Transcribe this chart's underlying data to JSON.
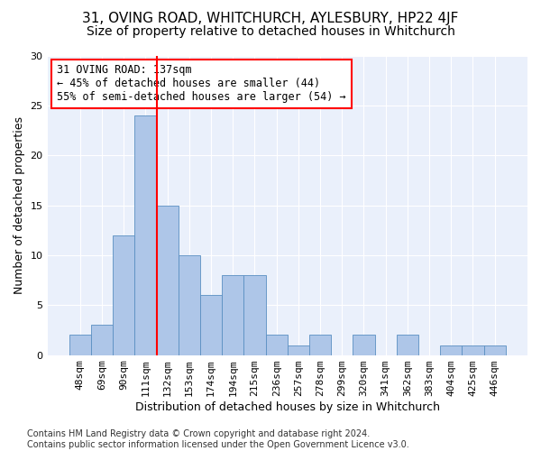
{
  "title": "31, OVING ROAD, WHITCHURCH, AYLESBURY, HP22 4JF",
  "subtitle": "Size of property relative to detached houses in Whitchurch",
  "xlabel": "Distribution of detached houses by size in Whitchurch",
  "ylabel": "Number of detached properties",
  "bar_values": [
    2,
    3,
    12,
    24,
    15,
    10,
    6,
    8,
    8,
    2,
    1,
    2,
    0,
    2,
    0,
    2,
    0,
    1,
    1,
    1
  ],
  "bar_labels": [
    "48sqm",
    "69sqm",
    "90sqm",
    "111sqm",
    "132sqm",
    "153sqm",
    "174sqm",
    "194sqm",
    "215sqm",
    "236sqm",
    "257sqm",
    "278sqm",
    "299sqm",
    "320sqm",
    "341sqm",
    "362sqm",
    "383sqm",
    "404sqm",
    "425sqm",
    "446sqm"
  ],
  "bar_color": "#aec6e8",
  "bar_edge_color": "#5a8fc2",
  "vline_color": "red",
  "annotation_text": "31 OVING ROAD: 137sqm\n← 45% of detached houses are smaller (44)\n55% of semi-detached houses are larger (54) →",
  "annotation_box_color": "white",
  "annotation_box_edge_color": "red",
  "ylim": [
    0,
    30
  ],
  "yticks": [
    0,
    5,
    10,
    15,
    20,
    25,
    30
  ],
  "bg_color": "#eaf0fb",
  "footer_text": "Contains HM Land Registry data © Crown copyright and database right 2024.\nContains public sector information licensed under the Open Government Licence v3.0.",
  "title_fontsize": 11,
  "subtitle_fontsize": 10,
  "xlabel_fontsize": 9,
  "ylabel_fontsize": 9,
  "tick_fontsize": 8,
  "annotation_fontsize": 8.5,
  "footer_fontsize": 7
}
